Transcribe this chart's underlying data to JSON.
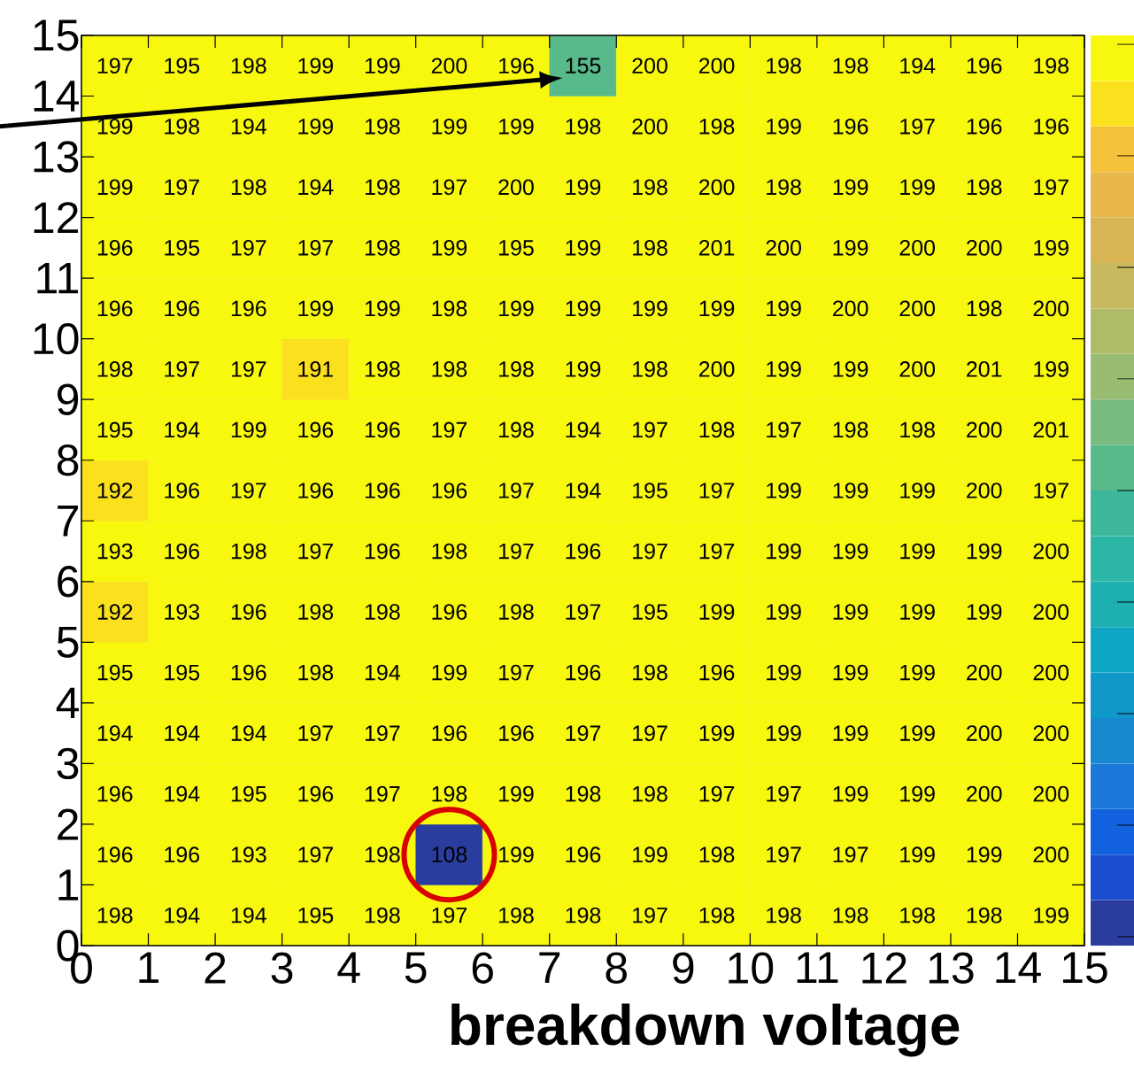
{
  "chart_data": {
    "type": "heatmap",
    "xlabel": "breakdown voltage",
    "xlim": [
      0,
      15
    ],
    "ylim": [
      0,
      15
    ],
    "xticks": [
      0,
      1,
      2,
      3,
      4,
      5,
      6,
      7,
      8,
      9,
      10,
      11,
      12,
      13,
      14,
      15
    ],
    "yticks": [
      0,
      1,
      2,
      3,
      4,
      5,
      6,
      7,
      8,
      9,
      10,
      11,
      12,
      13,
      14,
      15
    ],
    "data_labels": true,
    "cells": [
      [
        197,
        195,
        198,
        199,
        199,
        200,
        196,
        155,
        200,
        200,
        198,
        198,
        194,
        196,
        198
      ],
      [
        199,
        198,
        194,
        199,
        198,
        199,
        199,
        198,
        200,
        198,
        199,
        196,
        197,
        196,
        196
      ],
      [
        199,
        197,
        198,
        194,
        198,
        197,
        200,
        199,
        198,
        200,
        198,
        199,
        199,
        198,
        197
      ],
      [
        196,
        195,
        197,
        197,
        198,
        199,
        195,
        199,
        198,
        201,
        200,
        199,
        200,
        200,
        199
      ],
      [
        196,
        196,
        196,
        199,
        199,
        198,
        199,
        199,
        199,
        199,
        199,
        200,
        200,
        198,
        200
      ],
      [
        198,
        197,
        197,
        191,
        198,
        198,
        198,
        199,
        198,
        200,
        199,
        199,
        200,
        201,
        199
      ],
      [
        195,
        194,
        199,
        196,
        196,
        197,
        198,
        194,
        197,
        198,
        197,
        198,
        198,
        200,
        201
      ],
      [
        192,
        196,
        197,
        196,
        196,
        196,
        197,
        194,
        195,
        197,
        199,
        199,
        199,
        200,
        197
      ],
      [
        193,
        196,
        198,
        197,
        196,
        198,
        197,
        196,
        197,
        197,
        199,
        199,
        199,
        199,
        200
      ],
      [
        192,
        193,
        196,
        198,
        198,
        196,
        198,
        197,
        195,
        199,
        199,
        199,
        199,
        199,
        200
      ],
      [
        195,
        195,
        196,
        198,
        194,
        199,
        197,
        196,
        198,
        196,
        199,
        199,
        199,
        200,
        200
      ],
      [
        194,
        194,
        194,
        197,
        197,
        196,
        196,
        197,
        197,
        199,
        199,
        199,
        199,
        200,
        200
      ],
      [
        196,
        194,
        195,
        196,
        197,
        198,
        199,
        198,
        198,
        197,
        197,
        199,
        199,
        200,
        200
      ],
      [
        196,
        196,
        193,
        197,
        198,
        108,
        199,
        196,
        199,
        198,
        197,
        197,
        199,
        199,
        200
      ],
      [
        198,
        194,
        194,
        195,
        198,
        197,
        198,
        198,
        197,
        198,
        198,
        198,
        198,
        198,
        199
      ]
    ]
  }
}
